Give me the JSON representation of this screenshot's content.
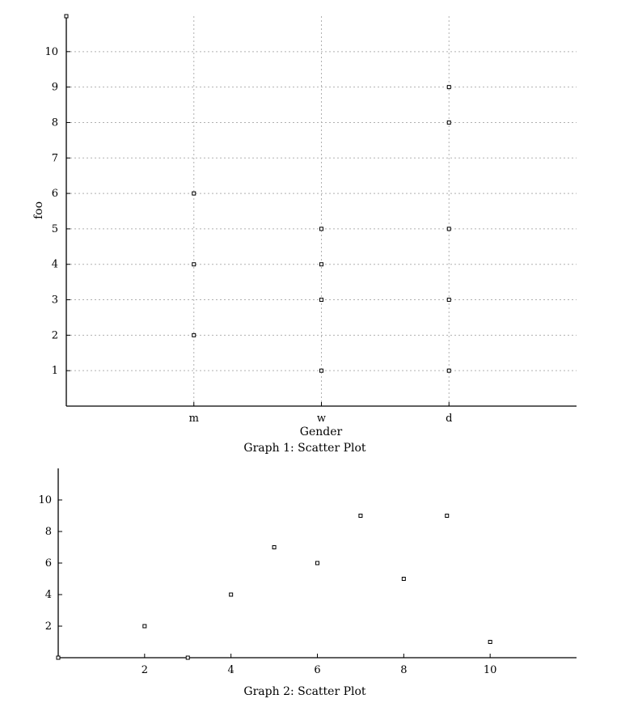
{
  "chart_data": [
    {
      "type": "scatter",
      "caption": "Graph 1: Scatter Plot",
      "xlabel": "Gender",
      "ylabel": "foo",
      "categories": [
        "m",
        "w",
        "d"
      ],
      "y_ticks": [
        1,
        2,
        3,
        4,
        5,
        6,
        7,
        8,
        9,
        10
      ],
      "ylim": [
        0,
        11
      ],
      "grid": true,
      "points": [
        {
          "x": "m",
          "y": 2
        },
        {
          "x": "m",
          "y": 4
        },
        {
          "x": "m",
          "y": 6
        },
        {
          "x": "w",
          "y": 1
        },
        {
          "x": "w",
          "y": 3
        },
        {
          "x": "w",
          "y": 4
        },
        {
          "x": "w",
          "y": 5
        },
        {
          "x": "d",
          "y": 1
        },
        {
          "x": "d",
          "y": 3
        },
        {
          "x": "d",
          "y": 5
        },
        {
          "x": "d",
          "y": 8
        },
        {
          "x": "d",
          "y": 9
        }
      ]
    },
    {
      "type": "scatter",
      "caption": "Graph 2: Scatter Plot",
      "xlabel": "",
      "ylabel": "",
      "x_ticks": [
        2,
        4,
        6,
        8,
        10
      ],
      "y_ticks": [
        2,
        4,
        6,
        8,
        10
      ],
      "xlim": [
        0,
        12
      ],
      "ylim": [
        0,
        12
      ],
      "grid": false,
      "points": [
        {
          "x": 2,
          "y": 2
        },
        {
          "x": 3,
          "y": 0
        },
        {
          "x": 4,
          "y": 4
        },
        {
          "x": 5,
          "y": 7
        },
        {
          "x": 6,
          "y": 6
        },
        {
          "x": 7,
          "y": 9
        },
        {
          "x": 8,
          "y": 5
        },
        {
          "x": 9,
          "y": 9
        },
        {
          "x": 10,
          "y": 1
        }
      ]
    }
  ]
}
